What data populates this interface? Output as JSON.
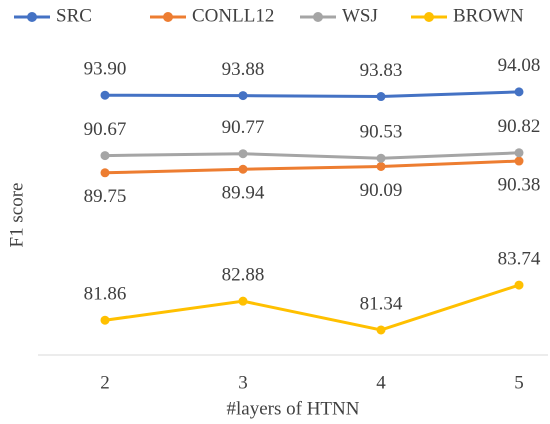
{
  "chart_data": {
    "type": "line",
    "x_label": "#layers of HTNN",
    "y_label": "F1 score",
    "categories": [
      "2",
      "3",
      "4",
      "5"
    ],
    "ylim": [
      80,
      96
    ],
    "series": [
      {
        "name": "SRC",
        "color": "#4472c4",
        "values": [
          93.9,
          93.88,
          93.83,
          94.08
        ],
        "value_labels": [
          "93.90",
          "93.88",
          "93.83",
          "94.08"
        ]
      },
      {
        "name": "CONLL12",
        "color": "#ed7d31",
        "values": [
          89.75,
          89.94,
          90.09,
          90.38
        ],
        "value_labels": [
          "89.75",
          "89.94",
          "90.09",
          "90.38"
        ]
      },
      {
        "name": "WSJ",
        "color": "#a5a5a5",
        "values": [
          90.67,
          90.77,
          90.53,
          90.82
        ],
        "value_labels": [
          "90.67",
          "90.77",
          "90.53",
          "90.82"
        ]
      },
      {
        "name": "BROWN",
        "color": "#ffc000",
        "values": [
          81.86,
          82.88,
          81.34,
          83.74
        ],
        "value_labels": [
          "81.86",
          "82.88",
          "81.34",
          "83.74"
        ]
      }
    ]
  }
}
